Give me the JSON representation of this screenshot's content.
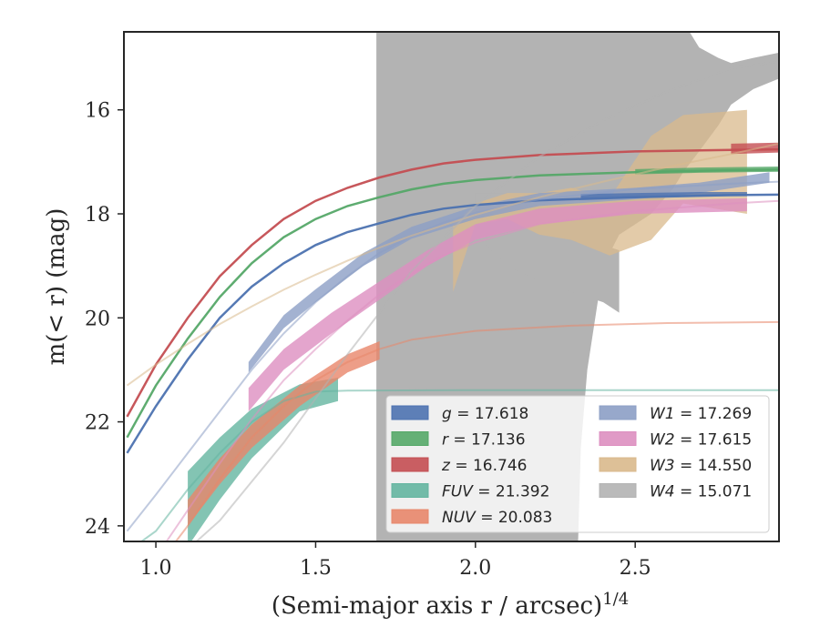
{
  "chart_data": {
    "type": "line",
    "xlabel": "(Semi-major axis r / arcsec)",
    "xlabel_exp": "1/4",
    "ylabel": "m(< r) (mag)",
    "xlim": [
      0.9,
      2.95
    ],
    "ylim": [
      24.3,
      14.5
    ],
    "y_inverted": true,
    "grid": false,
    "legend_position": "lower-right",
    "x_ticks": [
      {
        "value": 1.0,
        "label": "1.0"
      },
      {
        "value": 1.5,
        "label": "1.5"
      },
      {
        "value": 2.0,
        "label": "2.0"
      },
      {
        "value": 2.5,
        "label": "2.5"
      }
    ],
    "y_ticks": [
      {
        "value": 16,
        "label": "16"
      },
      {
        "value": 18,
        "label": "18"
      },
      {
        "value": 20,
        "label": "20"
      },
      {
        "value": 22,
        "label": "22"
      },
      {
        "value": 24,
        "label": "24"
      }
    ],
    "series": [
      {
        "name": "g = 17.618",
        "label_var": "g",
        "label_val": "17.618",
        "color": "#4c72b0",
        "model": [
          [
            0.91,
            22.6
          ],
          [
            1.0,
            21.7
          ],
          [
            1.1,
            20.8
          ],
          [
            1.2,
            20.0
          ],
          [
            1.3,
            19.4
          ],
          [
            1.4,
            18.95
          ],
          [
            1.5,
            18.6
          ],
          [
            1.6,
            18.35
          ],
          [
            1.7,
            18.18
          ],
          [
            1.8,
            18.02
          ],
          [
            1.9,
            17.9
          ],
          [
            2.0,
            17.83
          ],
          [
            2.2,
            17.74
          ],
          [
            2.5,
            17.68
          ],
          [
            2.8,
            17.64
          ],
          [
            2.95,
            17.63
          ]
        ],
        "data_band": [
          [
            2.33,
            17.7,
            17.62
          ],
          [
            2.5,
            17.68,
            17.6
          ],
          [
            2.7,
            17.66,
            17.58
          ],
          [
            2.85,
            17.66,
            17.58
          ]
        ]
      },
      {
        "name": "r = 17.136",
        "label_var": "r",
        "label_val": "17.136",
        "color": "#55a868",
        "model": [
          [
            0.91,
            22.3
          ],
          [
            1.0,
            21.3
          ],
          [
            1.1,
            20.4
          ],
          [
            1.2,
            19.6
          ],
          [
            1.3,
            18.95
          ],
          [
            1.4,
            18.45
          ],
          [
            1.5,
            18.1
          ],
          [
            1.6,
            17.85
          ],
          [
            1.7,
            17.68
          ],
          [
            1.8,
            17.53
          ],
          [
            1.9,
            17.42
          ],
          [
            2.0,
            17.35
          ],
          [
            2.2,
            17.26
          ],
          [
            2.5,
            17.2
          ],
          [
            2.8,
            17.16
          ],
          [
            2.95,
            17.15
          ]
        ],
        "data_band": [
          [
            2.5,
            17.24,
            17.14
          ],
          [
            2.7,
            17.21,
            17.11
          ],
          [
            2.95,
            17.19,
            17.09
          ]
        ]
      },
      {
        "name": "z = 16.746",
        "label_var": "z",
        "label_val": "16.746",
        "color": "#c44e52",
        "model": [
          [
            0.91,
            21.9
          ],
          [
            1.0,
            20.9
          ],
          [
            1.1,
            20.0
          ],
          [
            1.2,
            19.2
          ],
          [
            1.3,
            18.6
          ],
          [
            1.4,
            18.1
          ],
          [
            1.5,
            17.75
          ],
          [
            1.6,
            17.5
          ],
          [
            1.7,
            17.3
          ],
          [
            1.8,
            17.15
          ],
          [
            1.9,
            17.03
          ],
          [
            2.0,
            16.96
          ],
          [
            2.2,
            16.87
          ],
          [
            2.5,
            16.8
          ],
          [
            2.8,
            16.77
          ],
          [
            2.95,
            16.76
          ]
        ],
        "data_band": [
          [
            2.8,
            16.85,
            16.65
          ],
          [
            2.95,
            16.82,
            16.63
          ]
        ]
      },
      {
        "name": "FUV = 21.392",
        "label_var": "FUV",
        "label_val": "21.392",
        "color": "#64b5a0",
        "model": [
          [
            0.91,
            24.5
          ],
          [
            1.0,
            24.1
          ],
          [
            1.1,
            23.3
          ],
          [
            1.2,
            22.6
          ],
          [
            1.3,
            22.0
          ],
          [
            1.4,
            21.6
          ],
          [
            1.5,
            21.42
          ],
          [
            1.6,
            21.4
          ],
          [
            2.0,
            21.39
          ],
          [
            2.95,
            21.39
          ]
        ],
        "data_band": [
          [
            1.1,
            24.4,
            22.95
          ],
          [
            1.2,
            23.5,
            22.3
          ],
          [
            1.3,
            22.7,
            21.75
          ],
          [
            1.45,
            21.8,
            21.28
          ],
          [
            1.57,
            21.6,
            21.15
          ]
        ]
      },
      {
        "name": "NUV = 20.083",
        "label_var": "NUV",
        "label_val": "20.083",
        "color": "#e8866a",
        "model": [
          [
            1.0,
            24.8
          ],
          [
            1.1,
            24.0
          ],
          [
            1.2,
            23.1
          ],
          [
            1.3,
            22.3
          ],
          [
            1.4,
            21.7
          ],
          [
            1.5,
            21.2
          ],
          [
            1.6,
            20.85
          ],
          [
            1.7,
            20.6
          ],
          [
            1.8,
            20.42
          ],
          [
            2.0,
            20.25
          ],
          [
            2.3,
            20.15
          ],
          [
            2.6,
            20.1
          ],
          [
            2.95,
            20.08
          ]
        ],
        "data_band": [
          [
            1.1,
            24.0,
            23.5
          ],
          [
            1.2,
            23.2,
            22.7
          ],
          [
            1.3,
            22.5,
            22.05
          ],
          [
            1.45,
            21.7,
            21.3
          ],
          [
            1.6,
            21.05,
            20.7
          ],
          [
            1.7,
            20.8,
            20.45
          ]
        ]
      },
      {
        "name": "W1 = 17.269",
        "label_var": "W1",
        "label_val": "17.269",
        "color": "#8c9fc5",
        "model": [
          [
            0.91,
            24.1
          ],
          [
            1.0,
            23.4
          ],
          [
            1.1,
            22.6
          ],
          [
            1.2,
            21.8
          ],
          [
            1.3,
            21.0
          ],
          [
            1.4,
            20.3
          ],
          [
            1.5,
            19.7
          ],
          [
            1.6,
            19.2
          ],
          [
            1.7,
            18.75
          ],
          [
            1.8,
            18.42
          ],
          [
            1.9,
            18.17
          ],
          [
            2.0,
            17.98
          ],
          [
            2.2,
            17.72
          ],
          [
            2.5,
            17.52
          ],
          [
            2.8,
            17.42
          ],
          [
            2.95,
            17.38
          ]
        ],
        "data_band": [
          [
            1.29,
            21.05,
            20.85
          ],
          [
            1.4,
            20.2,
            19.95
          ],
          [
            1.5,
            19.7,
            19.45
          ],
          [
            1.65,
            19.0,
            18.75
          ],
          [
            1.8,
            18.48,
            18.25
          ],
          [
            2.0,
            18.1,
            17.85
          ],
          [
            2.2,
            17.85,
            17.6
          ],
          [
            2.5,
            17.72,
            17.5
          ],
          [
            2.7,
            17.6,
            17.4
          ],
          [
            2.92,
            17.4,
            17.2
          ]
        ]
      },
      {
        "name": "W2 = 17.615",
        "label_var": "W2",
        "label_val": "17.615",
        "color": "#dd8fc0",
        "model": [
          [
            1.0,
            24.6
          ],
          [
            1.1,
            23.7
          ],
          [
            1.2,
            22.8
          ],
          [
            1.3,
            21.95
          ],
          [
            1.4,
            21.2
          ],
          [
            1.5,
            20.6
          ],
          [
            1.6,
            20.05
          ],
          [
            1.7,
            19.55
          ],
          [
            1.8,
            19.15
          ],
          [
            1.9,
            18.8
          ],
          [
            2.0,
            18.55
          ],
          [
            2.2,
            18.2
          ],
          [
            2.5,
            17.95
          ],
          [
            2.8,
            17.8
          ],
          [
            2.95,
            17.75
          ]
        ],
        "data_band": [
          [
            1.29,
            21.8,
            21.35
          ],
          [
            1.4,
            21.0,
            20.6
          ],
          [
            1.55,
            20.3,
            19.9
          ],
          [
            1.7,
            19.65,
            19.3
          ],
          [
            1.85,
            19.0,
            18.7
          ],
          [
            2.0,
            18.5,
            18.2
          ],
          [
            2.2,
            18.2,
            17.9
          ],
          [
            2.5,
            18.0,
            17.75
          ],
          [
            2.85,
            17.95,
            17.7
          ]
        ]
      },
      {
        "name": "W3 = 14.550",
        "label_var": "W3",
        "label_val": "14.550",
        "color": "#d9b98c",
        "model": [
          [
            0.91,
            21.3
          ],
          [
            1.0,
            20.9
          ],
          [
            1.1,
            20.5
          ],
          [
            1.2,
            20.12
          ],
          [
            1.3,
            19.78
          ],
          [
            1.4,
            19.46
          ],
          [
            1.5,
            19.17
          ],
          [
            1.6,
            18.9
          ],
          [
            1.7,
            18.65
          ],
          [
            1.8,
            18.42
          ],
          [
            2.0,
            18.02
          ],
          [
            2.2,
            17.68
          ],
          [
            2.4,
            17.38
          ],
          [
            2.6,
            17.1
          ],
          [
            2.8,
            16.85
          ],
          [
            2.95,
            16.65
          ]
        ],
        "data_band": [
          [
            1.93,
            19.5,
            18.2
          ],
          [
            2.0,
            18.2,
            17.8
          ],
          [
            2.1,
            18.1,
            17.6
          ],
          [
            2.2,
            18.4,
            17.6
          ],
          [
            2.3,
            18.5,
            17.5
          ],
          [
            2.42,
            18.8,
            17.7
          ],
          [
            2.55,
            18.5,
            16.5
          ],
          [
            2.65,
            17.8,
            16.1
          ],
          [
            2.75,
            17.9,
            16.05
          ],
          [
            2.85,
            18.0,
            16.0
          ]
        ]
      },
      {
        "name": "W4 = 15.071",
        "label_var": "W4",
        "label_val": "15.071",
        "color": "#b3b3b3",
        "model": [
          [
            1.0,
            25.0
          ],
          [
            1.2,
            23.9
          ],
          [
            1.4,
            22.4
          ],
          [
            1.6,
            20.7
          ],
          [
            1.8,
            19.1
          ],
          [
            2.0,
            17.85
          ],
          [
            2.2,
            16.9
          ],
          [
            2.4,
            16.2
          ],
          [
            2.6,
            15.65
          ],
          [
            2.8,
            15.2
          ],
          [
            2.95,
            15.07
          ]
        ],
        "data_band": [
          [
            1.69,
            24.6,
            14.3
          ],
          [
            2.0,
            24.6,
            14.3
          ],
          [
            2.25,
            24.6,
            14.3
          ],
          [
            2.32,
            24.6,
            14.3
          ],
          [
            2.33,
            22.5,
            14.3
          ],
          [
            2.35,
            21.0,
            14.3
          ],
          [
            2.4,
            19.0,
            14.3
          ],
          [
            2.45,
            18.4,
            14.3
          ],
          [
            2.55,
            18.0,
            14.3
          ],
          [
            2.62,
            17.5,
            14.3
          ],
          [
            2.65,
            17.2,
            14.3
          ],
          [
            2.7,
            16.8,
            14.8
          ],
          [
            2.76,
            16.3,
            15.0
          ],
          [
            2.8,
            15.9,
            15.1
          ],
          [
            2.87,
            15.6,
            15.0
          ],
          [
            2.95,
            15.4,
            14.9
          ]
        ],
        "data_band_extra": [
          [
            2.0,
            18.4,
            17.6
          ],
          [
            2.1,
            19.0,
            17.6
          ],
          [
            2.2,
            19.3,
            17.8
          ],
          [
            2.3,
            19.5,
            18.3
          ],
          [
            2.4,
            19.7,
            18.6
          ],
          [
            2.45,
            19.9,
            18.7
          ]
        ]
      }
    ],
    "legend_columns": [
      [
        "g = 17.618",
        "r = 17.136",
        "z = 16.746",
        "FUV = 21.392",
        "NUV = 20.083"
      ],
      [
        "W1 = 17.269",
        "W2 = 17.615",
        "W3 = 14.550",
        "W4 = 15.071"
      ]
    ]
  }
}
